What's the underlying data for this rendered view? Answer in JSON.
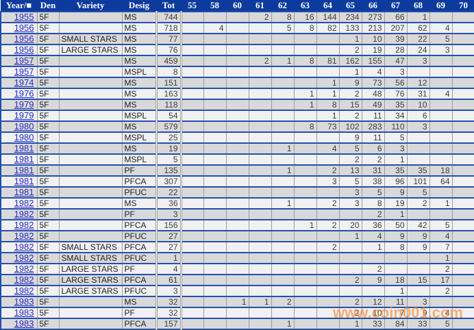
{
  "watermark": "www.coin001.com",
  "colors": {
    "header_bg": "#0d3b9d",
    "row_separator": "#2150ae",
    "row_odd_bg": "#d9d9d9",
    "row_even_bg": "#f1f1f1",
    "cell_border": "#9c9c9c",
    "year_link": "#2a2ac8",
    "number_text": "#403d35",
    "watermark_orange": "#ff8326"
  },
  "table": {
    "columns": [
      {
        "key": "year",
        "label": "Year/■"
      },
      {
        "key": "den",
        "label": "Den"
      },
      {
        "key": "variety",
        "label": "Variety"
      },
      {
        "key": "desig",
        "label": "Desig"
      },
      {
        "key": "tot",
        "label": "Tot"
      },
      {
        "key": "55",
        "label": "55"
      },
      {
        "key": "58",
        "label": "58"
      },
      {
        "key": "60",
        "label": "60"
      },
      {
        "key": "61",
        "label": "61"
      },
      {
        "key": "62",
        "label": "62"
      },
      {
        "key": "63",
        "label": "63"
      },
      {
        "key": "64",
        "label": "64"
      },
      {
        "key": "65",
        "label": "65"
      },
      {
        "key": "66",
        "label": "66"
      },
      {
        "key": "67",
        "label": "67"
      },
      {
        "key": "68",
        "label": "68"
      },
      {
        "key": "69",
        "label": "69"
      },
      {
        "key": "70",
        "label": "70"
      }
    ],
    "rows": [
      {
        "year": "1955",
        "den": "5F",
        "variety": "",
        "desig": "MS",
        "tot": "744",
        "vals": {
          "61": "2",
          "62": "8",
          "63": "16",
          "64": "144",
          "65": "234",
          "66": "273",
          "67": "66",
          "68": "1"
        }
      },
      {
        "year": "1956",
        "den": "5F",
        "variety": "",
        "desig": "MS",
        "tot": "718",
        "vals": {
          "58": "4",
          "62": "5",
          "63": "8",
          "64": "82",
          "65": "133",
          "66": "213",
          "67": "207",
          "68": "62",
          "69": "4"
        }
      },
      {
        "year": "1956",
        "den": "5F",
        "variety": "SMALL STARS",
        "desig": "MS",
        "tot": "77",
        "vals": {
          "65": "1",
          "66": "10",
          "67": "39",
          "68": "22",
          "69": "5"
        }
      },
      {
        "year": "1956",
        "den": "5F",
        "variety": "LARGE STARS",
        "desig": "MS",
        "tot": "76",
        "vals": {
          "65": "2",
          "66": "19",
          "67": "28",
          "68": "24",
          "69": "3"
        }
      },
      {
        "year": "1957",
        "den": "5F",
        "variety": "",
        "desig": "MS",
        "tot": "459",
        "vals": {
          "61": "2",
          "62": "1",
          "63": "8",
          "64": "81",
          "65": "162",
          "66": "155",
          "67": "47",
          "68": "3"
        }
      },
      {
        "year": "1957",
        "den": "5F",
        "variety": "",
        "desig": "MSPL",
        "tot": "8",
        "vals": {
          "65": "1",
          "66": "4",
          "67": "3"
        }
      },
      {
        "year": "1974",
        "den": "5F",
        "variety": "",
        "desig": "MS",
        "tot": "151",
        "vals": {
          "64": "1",
          "65": "9",
          "66": "73",
          "67": "56",
          "68": "12"
        }
      },
      {
        "year": "1976",
        "den": "5F",
        "variety": "",
        "desig": "MS",
        "tot": "163",
        "vals": {
          "63": "1",
          "64": "1",
          "65": "2",
          "66": "48",
          "67": "76",
          "68": "31",
          "69": "4"
        }
      },
      {
        "year": "1979",
        "den": "5F",
        "variety": "",
        "desig": "MS",
        "tot": "118",
        "vals": {
          "63": "1",
          "64": "8",
          "65": "15",
          "66": "49",
          "67": "35",
          "68": "10"
        }
      },
      {
        "year": "1979",
        "den": "5F",
        "variety": "",
        "desig": "MSPL",
        "tot": "54",
        "vals": {
          "64": "1",
          "65": "2",
          "66": "11",
          "67": "34",
          "68": "6"
        }
      },
      {
        "year": "1980",
        "den": "5F",
        "variety": "",
        "desig": "MS",
        "tot": "579",
        "vals": {
          "63": "8",
          "64": "73",
          "65": "102",
          "66": "283",
          "67": "110",
          "68": "3"
        }
      },
      {
        "year": "1980",
        "den": "5F",
        "variety": "",
        "desig": "MSPL",
        "tot": "25",
        "vals": {
          "65": "9",
          "66": "11",
          "67": "5"
        }
      },
      {
        "year": "1981",
        "den": "5F",
        "variety": "",
        "desig": "MS",
        "tot": "19",
        "vals": {
          "62": "1",
          "64": "4",
          "65": "5",
          "66": "6",
          "67": "3"
        }
      },
      {
        "year": "1981",
        "den": "5F",
        "variety": "",
        "desig": "MSPL",
        "tot": "5",
        "vals": {
          "65": "2",
          "66": "2",
          "67": "1"
        }
      },
      {
        "year": "1981",
        "den": "5F",
        "variety": "",
        "desig": "PF",
        "tot": "135",
        "vals": {
          "62": "1",
          "64": "2",
          "65": "13",
          "66": "31",
          "67": "35",
          "68": "35",
          "69": "18"
        }
      },
      {
        "year": "1981",
        "den": "5F",
        "variety": "",
        "desig": "PFCA",
        "tot": "307",
        "vals": {
          "64": "3",
          "65": "5",
          "66": "38",
          "67": "96",
          "68": "101",
          "69": "64"
        }
      },
      {
        "year": "1981",
        "den": "5F",
        "variety": "",
        "desig": "PFUC",
        "tot": "22",
        "vals": {
          "65": "3",
          "66": "5",
          "67": "9",
          "68": "5"
        }
      },
      {
        "year": "1982",
        "den": "5F",
        "variety": "",
        "desig": "MS",
        "tot": "36",
        "vals": {
          "62": "1",
          "64": "2",
          "65": "3",
          "66": "8",
          "67": "19",
          "68": "2",
          "69": "1"
        }
      },
      {
        "year": "1982",
        "den": "5F",
        "variety": "",
        "desig": "PF",
        "tot": "3",
        "vals": {
          "66": "2",
          "67": "1"
        }
      },
      {
        "year": "1982",
        "den": "5F",
        "variety": "",
        "desig": "PFCA",
        "tot": "156",
        "vals": {
          "63": "1",
          "64": "2",
          "65": "20",
          "66": "36",
          "67": "50",
          "68": "42",
          "69": "5"
        }
      },
      {
        "year": "1982",
        "den": "5F",
        "variety": "",
        "desig": "PFUC",
        "tot": "27",
        "vals": {
          "65": "1",
          "66": "4",
          "67": "9",
          "68": "9",
          "69": "4"
        }
      },
      {
        "year": "1982",
        "den": "5F",
        "variety": "SMALL STARS",
        "desig": "PFCA",
        "tot": "27",
        "vals": {
          "64": "2",
          "66": "1",
          "67": "8",
          "68": "9",
          "69": "7"
        }
      },
      {
        "year": "1982",
        "den": "5F",
        "variety": "SMALL STARS",
        "desig": "PFUC",
        "tot": "1",
        "vals": {
          "69": "1"
        }
      },
      {
        "year": "1982",
        "den": "5F",
        "variety": "LARGE STARS",
        "desig": "PF",
        "tot": "4",
        "vals": {
          "66": "2",
          "69": "2"
        }
      },
      {
        "year": "1982",
        "den": "5F",
        "variety": "LARGE STARS",
        "desig": "PFCA",
        "tot": "61",
        "vals": {
          "65": "2",
          "66": "9",
          "67": "18",
          "68": "15",
          "69": "17"
        }
      },
      {
        "year": "1982",
        "den": "5F",
        "variety": "LARGE STARS",
        "desig": "PFUC",
        "tot": "3",
        "vals": {
          "67": "1",
          "69": "2"
        }
      },
      {
        "year": "1983",
        "den": "5F",
        "variety": "",
        "desig": "MS",
        "tot": "32",
        "vals": {
          "60": "1",
          "61": "1",
          "62": "2",
          "65": "2",
          "66": "12",
          "67": "11",
          "68": "3"
        }
      },
      {
        "year": "1983",
        "den": "5F",
        "variety": "",
        "desig": "PF",
        "tot": "32",
        "vals": {
          "65": "2",
          "66": "10",
          "67": "7",
          "68": "9",
          "69": "4"
        }
      },
      {
        "year": "1983",
        "den": "5F",
        "variety": "",
        "desig": "PFCA",
        "tot": "157",
        "vals": {
          "62": "1",
          "65": "1",
          "66": "33",
          "67": "84",
          "68": "33",
          "69": "5"
        }
      }
    ]
  }
}
